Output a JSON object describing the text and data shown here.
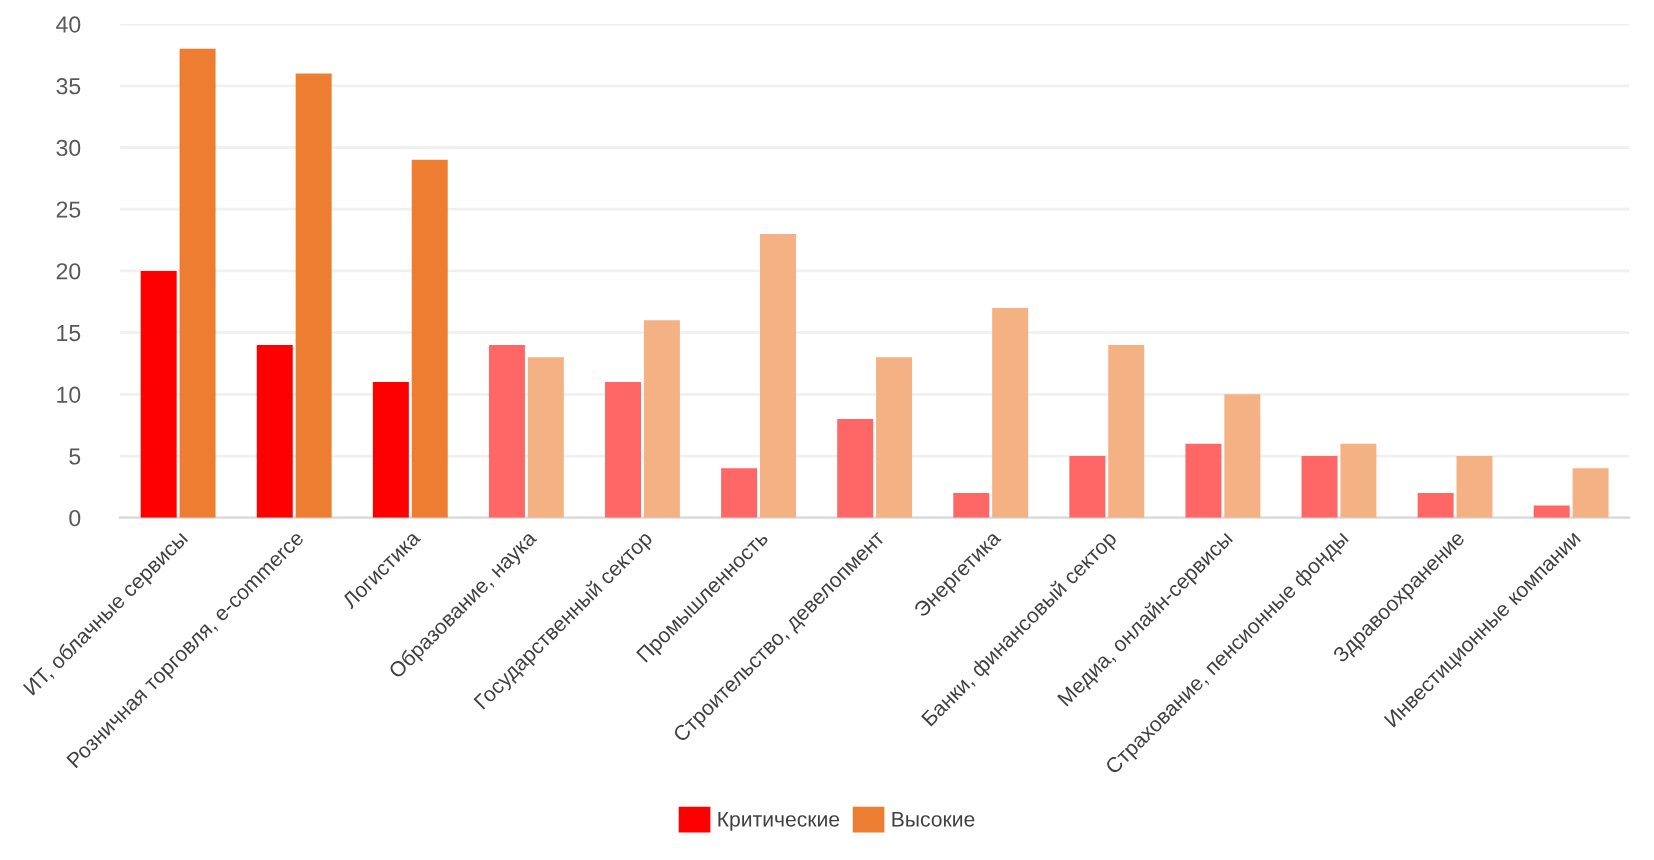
{
  "chart_data": {
    "type": "bar",
    "categories": [
      "ИТ, облачные сервисы",
      "Розничная торговля, e-commerce",
      "Логистика",
      "Образование, наука",
      "Государственный сектор",
      "Промышленность",
      "Строительство, девелопмент",
      "Энергетика",
      "Банки, финансовый сектор",
      "Медиа, онлайн-сервисы",
      "Страхование, пенсионные фонды",
      "Здравоохранение",
      "Инвестиционные компании"
    ],
    "series": [
      {
        "name": "Критические",
        "color": "#ff0000",
        "colors": [
          "#ff0000",
          "#ff0000",
          "#ff0000",
          "#ff6666",
          "#ff6666",
          "#ff6666",
          "#ff6666",
          "#ff6666",
          "#ff6666",
          "#ff6666",
          "#ff6666",
          "#ff6666",
          "#ff6666"
        ],
        "values": [
          20,
          14,
          11,
          14,
          11,
          4,
          8,
          2,
          5,
          6,
          5,
          2,
          1
        ]
      },
      {
        "name": "Высокие",
        "color": "#ed7d31",
        "colors": [
          "#ed7d31",
          "#ed7d31",
          "#ed7d31",
          "#f4b183",
          "#f4b183",
          "#f4b183",
          "#f4b183",
          "#f4b183",
          "#f4b183",
          "#f4b183",
          "#f4b183",
          "#f4b183",
          "#f4b183"
        ],
        "values": [
          38,
          36,
          29,
          13,
          16,
          23,
          13,
          17,
          14,
          10,
          6,
          5,
          4
        ]
      }
    ],
    "ylim": [
      0,
      40
    ],
    "yticks": [
      0,
      5,
      10,
      15,
      20,
      25,
      30,
      35,
      40
    ],
    "grid": "y",
    "legend": "bottom"
  }
}
